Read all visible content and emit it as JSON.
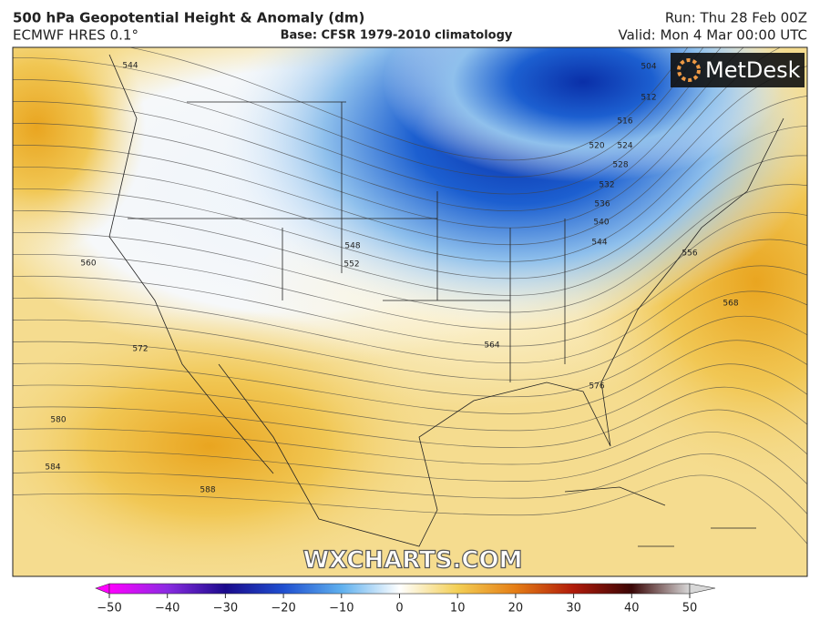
{
  "header": {
    "title": "500 hPa Geopotential Height & Anomaly (dm)",
    "model": "ECMWF HRES 0.1°",
    "base": "Base: CFSR 1979-2010 climatology",
    "run": "Run: Thu 28 Feb 00Z",
    "valid": "Valid: Mon 4 Mar 00:00 UTC"
  },
  "logo": "MetDesk",
  "watermark": "WXCHARTS.COM",
  "contour_labels": [
    504,
    512,
    516,
    520,
    524,
    528,
    532,
    536,
    540,
    544,
    544,
    548,
    552,
    556,
    560,
    564,
    568,
    572,
    576,
    580,
    584,
    588
  ],
  "colorbar": {
    "range": [
      -50,
      50
    ],
    "ticks": [
      {
        "value": -50,
        "label": "−50"
      },
      {
        "value": -40,
        "label": "−40"
      },
      {
        "value": -30,
        "label": "−30"
      },
      {
        "value": -20,
        "label": "−20"
      },
      {
        "value": -10,
        "label": "−10"
      },
      0,
      10,
      20,
      30,
      40,
      50
    ]
  }
}
